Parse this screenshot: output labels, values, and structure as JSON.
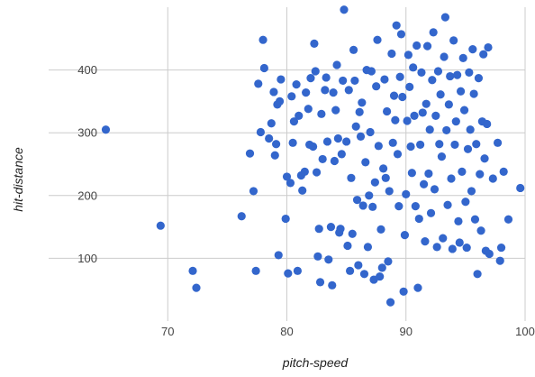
{
  "chart_data": {
    "type": "scatter",
    "title": "",
    "xlabel": "pitch-speed",
    "ylabel": "hit-distance",
    "xlim": [
      60,
      100
    ],
    "ylim": [
      0,
      500
    ],
    "x_ticks": [
      70,
      80,
      90,
      100
    ],
    "y_ticks": [
      100,
      200,
      300,
      400
    ],
    "grid": true,
    "legend": "none",
    "point_color": "#3366cc",
    "points": [
      [
        64.8,
        305
      ],
      [
        69.4,
        152
      ],
      [
        72.1,
        80
      ],
      [
        72.4,
        53
      ],
      [
        76.2,
        167
      ],
      [
        76.9,
        267
      ],
      [
        77.2,
        207
      ],
      [
        77.4,
        80
      ],
      [
        77.6,
        378
      ],
      [
        77.8,
        301
      ],
      [
        78.0,
        448
      ],
      [
        78.1,
        403
      ],
      [
        78.5,
        291
      ],
      [
        78.7,
        315
      ],
      [
        78.9,
        365
      ],
      [
        79.0,
        264
      ],
      [
        79.1,
        282
      ],
      [
        79.2,
        345
      ],
      [
        79.3,
        105
      ],
      [
        79.4,
        350
      ],
      [
        79.5,
        385
      ],
      [
        79.9,
        163
      ],
      [
        80.0,
        230
      ],
      [
        80.1,
        76
      ],
      [
        80.3,
        220
      ],
      [
        80.4,
        358
      ],
      [
        80.5,
        284
      ],
      [
        80.6,
        318
      ],
      [
        80.8,
        377
      ],
      [
        80.9,
        80
      ],
      [
        81.0,
        327
      ],
      [
        81.2,
        232
      ],
      [
        81.3,
        208
      ],
      [
        81.5,
        238
      ],
      [
        81.6,
        364
      ],
      [
        81.8,
        338
      ],
      [
        81.9,
        281
      ],
      [
        82.0,
        387
      ],
      [
        82.2,
        278
      ],
      [
        82.3,
        442
      ],
      [
        82.4,
        398
      ],
      [
        82.5,
        237
      ],
      [
        82.6,
        103
      ],
      [
        82.7,
        147
      ],
      [
        82.8,
        62
      ],
      [
        82.9,
        330
      ],
      [
        83.0,
        258
      ],
      [
        83.2,
        368
      ],
      [
        83.3,
        388
      ],
      [
        83.4,
        286
      ],
      [
        83.5,
        98
      ],
      [
        83.7,
        150
      ],
      [
        83.8,
        57
      ],
      [
        83.9,
        364
      ],
      [
        84.0,
        255
      ],
      [
        84.1,
        336
      ],
      [
        84.2,
        408
      ],
      [
        84.3,
        291
      ],
      [
        84.4,
        141
      ],
      [
        84.5,
        147
      ],
      [
        84.6,
        266
      ],
      [
        84.7,
        383
      ],
      [
        84.8,
        496
      ],
      [
        85.0,
        286
      ],
      [
        85.1,
        120
      ],
      [
        85.2,
        368
      ],
      [
        85.3,
        80
      ],
      [
        85.4,
        228
      ],
      [
        85.5,
        139
      ],
      [
        85.6,
        432
      ],
      [
        85.7,
        383
      ],
      [
        85.8,
        310
      ],
      [
        85.9,
        193
      ],
      [
        86.0,
        89
      ],
      [
        86.1,
        333
      ],
      [
        86.2,
        294
      ],
      [
        86.3,
        348
      ],
      [
        86.4,
        184
      ],
      [
        86.5,
        75
      ],
      [
        86.6,
        253
      ],
      [
        86.7,
        400
      ],
      [
        86.8,
        118
      ],
      [
        86.9,
        200
      ],
      [
        87.0,
        301
      ],
      [
        87.1,
        398
      ],
      [
        87.2,
        182
      ],
      [
        87.3,
        66
      ],
      [
        87.4,
        221
      ],
      [
        87.5,
        374
      ],
      [
        87.6,
        448
      ],
      [
        87.7,
        279
      ],
      [
        87.8,
        71
      ],
      [
        87.9,
        146
      ],
      [
        88.0,
        85
      ],
      [
        88.1,
        243
      ],
      [
        88.2,
        385
      ],
      [
        88.3,
        228
      ],
      [
        88.4,
        334
      ],
      [
        88.5,
        95
      ],
      [
        88.6,
        207
      ],
      [
        88.7,
        30
      ],
      [
        88.8,
        426
      ],
      [
        88.9,
        284
      ],
      [
        89.0,
        359
      ],
      [
        89.1,
        320
      ],
      [
        89.2,
        471
      ],
      [
        89.3,
        266
      ],
      [
        89.4,
        183
      ],
      [
        89.5,
        389
      ],
      [
        89.6,
        457
      ],
      [
        89.7,
        357
      ],
      [
        89.8,
        47
      ],
      [
        89.9,
        137
      ],
      [
        90.0,
        202
      ],
      [
        90.1,
        319
      ],
      [
        90.2,
        424
      ],
      [
        90.3,
        373
      ],
      [
        90.4,
        278
      ],
      [
        90.5,
        236
      ],
      [
        90.6,
        404
      ],
      [
        90.7,
        327
      ],
      [
        90.8,
        183
      ],
      [
        90.9,
        439
      ],
      [
        91.0,
        53
      ],
      [
        91.1,
        163
      ],
      [
        91.2,
        281
      ],
      [
        91.3,
        396
      ],
      [
        91.4,
        332
      ],
      [
        91.5,
        218
      ],
      [
        91.6,
        127
      ],
      [
        91.7,
        346
      ],
      [
        91.8,
        438
      ],
      [
        91.9,
        235
      ],
      [
        92.0,
        305
      ],
      [
        92.1,
        172
      ],
      [
        92.2,
        384
      ],
      [
        92.3,
        460
      ],
      [
        92.4,
        210
      ],
      [
        92.5,
        327
      ],
      [
        92.6,
        118
      ],
      [
        92.7,
        398
      ],
      [
        92.8,
        282
      ],
      [
        92.9,
        361
      ],
      [
        93.0,
        262
      ],
      [
        93.1,
        132
      ],
      [
        93.2,
        421
      ],
      [
        93.3,
        484
      ],
      [
        93.4,
        304
      ],
      [
        93.5,
        185
      ],
      [
        93.6,
        345
      ],
      [
        93.7,
        390
      ],
      [
        93.8,
        227
      ],
      [
        93.9,
        115
      ],
      [
        94.0,
        447
      ],
      [
        94.1,
        281
      ],
      [
        94.2,
        318
      ],
      [
        94.3,
        392
      ],
      [
        94.4,
        159
      ],
      [
        94.5,
        125
      ],
      [
        94.6,
        366
      ],
      [
        94.7,
        238
      ],
      [
        94.8,
        419
      ],
      [
        94.9,
        336
      ],
      [
        95.0,
        190
      ],
      [
        95.1,
        117
      ],
      [
        95.2,
        274
      ],
      [
        95.3,
        396
      ],
      [
        95.4,
        305
      ],
      [
        95.5,
        207
      ],
      [
        95.6,
        433
      ],
      [
        95.7,
        362
      ],
      [
        95.8,
        162
      ],
      [
        95.9,
        282
      ],
      [
        96.0,
        75
      ],
      [
        96.1,
        387
      ],
      [
        96.2,
        234
      ],
      [
        96.3,
        144
      ],
      [
        96.4,
        318
      ],
      [
        96.5,
        425
      ],
      [
        96.6,
        259
      ],
      [
        96.7,
        112
      ],
      [
        96.8,
        314
      ],
      [
        96.9,
        436
      ],
      [
        97.0,
        107
      ],
      [
        97.3,
        227
      ],
      [
        97.7,
        284
      ],
      [
        97.9,
        96
      ],
      [
        98.0,
        117
      ],
      [
        98.2,
        238
      ],
      [
        98.6,
        162
      ],
      [
        99.6,
        212
      ]
    ]
  }
}
